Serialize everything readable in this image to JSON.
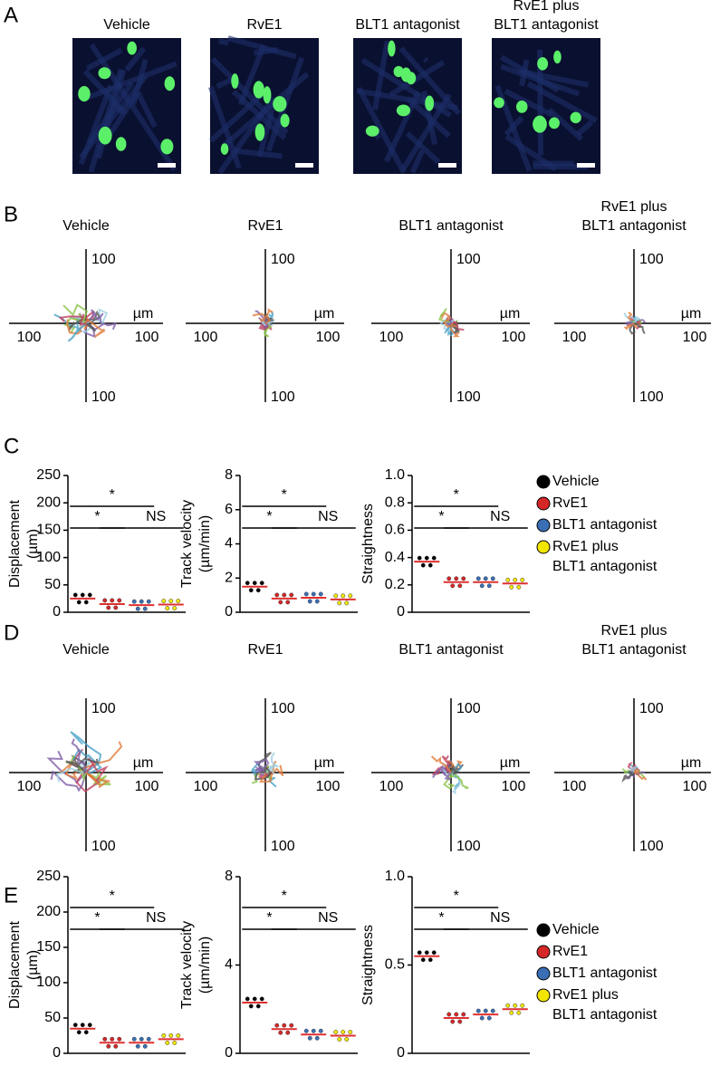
{
  "panel_labels": [
    "A",
    "B",
    "C",
    "D",
    "E"
  ],
  "groups": [
    {
      "name": [
        "Vehicle"
      ],
      "color": "#000000"
    },
    {
      "name": [
        "RvE1"
      ],
      "color": "#d62728"
    },
    {
      "name": [
        "BLT1 antagonist"
      ],
      "color": "#3a6fb5"
    },
    {
      "name": [
        "RvE1 plus",
        "BLT1 antagonist"
      ],
      "color": "#f2e600"
    }
  ],
  "track_axis": {
    "extent": "100",
    "unit": "µm"
  },
  "chart_data": [
    {
      "type": "dot",
      "ylabel": [
        "Displacement",
        "(µm)"
      ],
      "ylim": [
        0,
        250
      ],
      "yticks": [
        0,
        50,
        100,
        150,
        200,
        250
      ],
      "values": [
        25,
        15,
        13,
        14
      ],
      "brackets": [
        "*",
        "*",
        "NS"
      ]
    },
    {
      "type": "dot",
      "ylabel": [
        "Track velocity",
        "(µm/min)"
      ],
      "ylim": [
        0,
        8
      ],
      "yticks": [
        0,
        2,
        4,
        6,
        8
      ],
      "values": [
        1.5,
        0.8,
        0.85,
        0.75
      ],
      "brackets": [
        "*",
        "*",
        "NS"
      ]
    },
    {
      "type": "dot",
      "ylabel": [
        "Straightness"
      ],
      "ylim": [
        0,
        1.0
      ],
      "yticks": [
        0,
        0.2,
        0.4,
        0.6,
        0.8,
        {
          "value": 1,
          "label": "1.0"
        }
      ],
      "values": [
        0.37,
        0.22,
        0.22,
        0.21
      ],
      "brackets": [
        "*",
        "*",
        "NS"
      ]
    },
    {
      "type": "dot",
      "ylabel": [
        "Displacement",
        "(µm)"
      ],
      "ylim": [
        0,
        250
      ],
      "yticks": [
        0,
        50,
        100,
        150,
        200,
        250
      ],
      "values": [
        35,
        15,
        15,
        20
      ],
      "brackets": [
        "*",
        "*",
        "NS"
      ]
    },
    {
      "type": "dot",
      "ylabel": [
        "Track velocity",
        "(µm/min)"
      ],
      "ylim": [
        0,
        8
      ],
      "yticks": [
        0,
        4,
        8
      ],
      "values": [
        2.3,
        1.1,
        0.85,
        0.8
      ],
      "brackets": [
        "*",
        "*",
        "NS"
      ]
    },
    {
      "type": "dot",
      "ylabel": [
        "Straightness"
      ],
      "ylim": [
        0,
        1
      ],
      "yticks": [
        0,
        0.5,
        {
          "value": 1,
          "label": "1.0"
        }
      ],
      "values": [
        0.55,
        0.2,
        0.22,
        0.25
      ],
      "brackets": [
        "*",
        "*",
        "NS"
      ]
    }
  ]
}
